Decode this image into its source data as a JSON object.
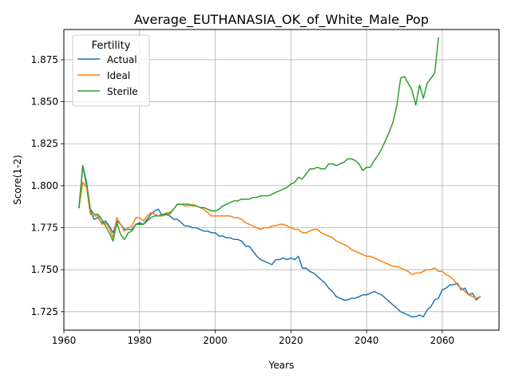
{
  "chart_data": {
    "type": "line",
    "title": "Average_EUTHANASIA_OK_of_White_Male_Pop",
    "xlabel": "Years",
    "ylabel": "Score(1-2)",
    "xlim": [
      1960,
      2075
    ],
    "ylim": [
      1.714,
      1.893
    ],
    "xticks": [
      1960,
      1980,
      2000,
      2020,
      2040,
      2060
    ],
    "xtick_labels": [
      "1960",
      "1980",
      "2000",
      "2020",
      "2040",
      "2060"
    ],
    "yticks": [
      1.725,
      1.75,
      1.775,
      1.8,
      1.825,
      1.85,
      1.875
    ],
    "ytick_labels": [
      "1.725",
      "1.750",
      "1.775",
      "1.800",
      "1.825",
      "1.850",
      "1.875"
    ],
    "grid": true,
    "legend": {
      "title": "Fertility",
      "position": "top-left"
    },
    "series": [
      {
        "name": "Actual",
        "color": "#1f77b4",
        "points": [
          [
            1964,
            1.787
          ],
          [
            1965,
            1.812
          ],
          [
            1966,
            1.8
          ],
          [
            1967,
            1.785
          ],
          [
            1968,
            1.78
          ],
          [
            1969,
            1.781
          ],
          [
            1970,
            1.778
          ],
          [
            1971,
            1.779
          ],
          [
            1972,
            1.776
          ],
          [
            1973,
            1.772
          ],
          [
            1974,
            1.779
          ],
          [
            1975,
            1.777
          ],
          [
            1976,
            1.774
          ],
          [
            1977,
            1.774
          ],
          [
            1978,
            1.774
          ],
          [
            1979,
            1.777
          ],
          [
            1980,
            1.778
          ],
          [
            1981,
            1.777
          ],
          [
            1982,
            1.78
          ],
          [
            1983,
            1.783
          ],
          [
            1984,
            1.785
          ],
          [
            1985,
            1.786
          ],
          [
            1986,
            1.782
          ],
          [
            1987,
            1.783
          ],
          [
            1988,
            1.782
          ],
          [
            1989,
            1.78
          ],
          [
            1990,
            1.78
          ],
          [
            1991,
            1.778
          ],
          [
            1992,
            1.776
          ],
          [
            1993,
            1.776
          ],
          [
            1994,
            1.775
          ],
          [
            1995,
            1.775
          ],
          [
            1996,
            1.774
          ],
          [
            1997,
            1.773
          ],
          [
            1998,
            1.773
          ],
          [
            1999,
            1.772
          ],
          [
            2000,
            1.772
          ],
          [
            2001,
            1.77
          ],
          [
            2002,
            1.77
          ],
          [
            2003,
            1.769
          ],
          [
            2004,
            1.769
          ],
          [
            2005,
            1.768
          ],
          [
            2006,
            1.768
          ],
          [
            2007,
            1.767
          ],
          [
            2008,
            1.764
          ],
          [
            2009,
            1.764
          ],
          [
            2010,
            1.761
          ],
          [
            2011,
            1.758
          ],
          [
            2012,
            1.756
          ],
          [
            2013,
            1.755
          ],
          [
            2014,
            1.754
          ],
          [
            2015,
            1.753
          ],
          [
            2016,
            1.756
          ],
          [
            2017,
            1.756
          ],
          [
            2018,
            1.757
          ],
          [
            2019,
            1.756
          ],
          [
            2020,
            1.757
          ],
          [
            2021,
            1.756
          ],
          [
            2022,
            1.758
          ],
          [
            2023,
            1.751
          ],
          [
            2024,
            1.751
          ],
          [
            2025,
            1.749
          ],
          [
            2026,
            1.748
          ],
          [
            2027,
            1.746
          ],
          [
            2028,
            1.744
          ],
          [
            2029,
            1.742
          ],
          [
            2030,
            1.739
          ],
          [
            2031,
            1.737
          ],
          [
            2032,
            1.734
          ],
          [
            2033,
            1.733
          ],
          [
            2034,
            1.732
          ],
          [
            2035,
            1.732
          ],
          [
            2036,
            1.733
          ],
          [
            2037,
            1.733
          ],
          [
            2038,
            1.734
          ],
          [
            2039,
            1.735
          ],
          [
            2040,
            1.735
          ],
          [
            2041,
            1.736
          ],
          [
            2042,
            1.737
          ],
          [
            2043,
            1.736
          ],
          [
            2044,
            1.735
          ],
          [
            2045,
            1.733
          ],
          [
            2046,
            1.731
          ],
          [
            2047,
            1.729
          ],
          [
            2048,
            1.727
          ],
          [
            2049,
            1.725
          ],
          [
            2050,
            1.724
          ],
          [
            2051,
            1.723
          ],
          [
            2052,
            1.722
          ],
          [
            2053,
            1.722
          ],
          [
            2054,
            1.723
          ],
          [
            2055,
            1.722
          ],
          [
            2056,
            1.726
          ],
          [
            2057,
            1.728
          ],
          [
            2058,
            1.732
          ],
          [
            2059,
            1.733
          ],
          [
            2060,
            1.738
          ],
          [
            2061,
            1.739
          ],
          [
            2062,
            1.741
          ],
          [
            2063,
            1.741
          ],
          [
            2064,
            1.742
          ],
          [
            2065,
            1.738
          ],
          [
            2066,
            1.739
          ],
          [
            2067,
            1.735
          ],
          [
            2068,
            1.736
          ],
          [
            2069,
            1.732
          ],
          [
            2070,
            1.734
          ]
        ]
      },
      {
        "name": "Ideal",
        "color": "#ff7f0e",
        "points": [
          [
            1964,
            1.787
          ],
          [
            1965,
            1.802
          ],
          [
            1966,
            1.799
          ],
          [
            1967,
            1.783
          ],
          [
            1968,
            1.782
          ],
          [
            1969,
            1.782
          ],
          [
            1970,
            1.777
          ],
          [
            1971,
            1.778
          ],
          [
            1972,
            1.775
          ],
          [
            1973,
            1.769
          ],
          [
            1974,
            1.781
          ],
          [
            1975,
            1.777
          ],
          [
            1976,
            1.773
          ],
          [
            1977,
            1.775
          ],
          [
            1978,
            1.776
          ],
          [
            1979,
            1.781
          ],
          [
            1980,
            1.781
          ],
          [
            1981,
            1.779
          ],
          [
            1982,
            1.782
          ],
          [
            1983,
            1.784
          ],
          [
            1984,
            1.783
          ],
          [
            1985,
            1.782
          ],
          [
            1986,
            1.782
          ],
          [
            1987,
            1.784
          ],
          [
            1988,
            1.783
          ],
          [
            1989,
            1.786
          ],
          [
            1990,
            1.789
          ],
          [
            1991,
            1.789
          ],
          [
            1992,
            1.788
          ],
          [
            1993,
            1.788
          ],
          [
            1994,
            1.789
          ],
          [
            1995,
            1.788
          ],
          [
            1996,
            1.787
          ],
          [
            1997,
            1.786
          ],
          [
            1998,
            1.784
          ],
          [
            1999,
            1.782
          ],
          [
            2000,
            1.782
          ],
          [
            2001,
            1.782
          ],
          [
            2002,
            1.782
          ],
          [
            2003,
            1.782
          ],
          [
            2004,
            1.782
          ],
          [
            2005,
            1.781
          ],
          [
            2006,
            1.781
          ],
          [
            2007,
            1.78
          ],
          [
            2008,
            1.778
          ],
          [
            2009,
            1.777
          ],
          [
            2010,
            1.776
          ],
          [
            2011,
            1.775
          ],
          [
            2012,
            1.774
          ],
          [
            2013,
            1.775
          ],
          [
            2014,
            1.775
          ],
          [
            2015,
            1.776
          ],
          [
            2016,
            1.776
          ],
          [
            2017,
            1.777
          ],
          [
            2018,
            1.777
          ],
          [
            2019,
            1.776
          ],
          [
            2020,
            1.775
          ],
          [
            2021,
            1.774
          ],
          [
            2022,
            1.774
          ],
          [
            2023,
            1.772
          ],
          [
            2024,
            1.772
          ],
          [
            2025,
            1.773
          ],
          [
            2026,
            1.774
          ],
          [
            2027,
            1.774
          ],
          [
            2028,
            1.772
          ],
          [
            2029,
            1.771
          ],
          [
            2030,
            1.77
          ],
          [
            2031,
            1.769
          ],
          [
            2032,
            1.767
          ],
          [
            2033,
            1.766
          ],
          [
            2034,
            1.765
          ],
          [
            2035,
            1.764
          ],
          [
            2036,
            1.762
          ],
          [
            2037,
            1.761
          ],
          [
            2038,
            1.76
          ],
          [
            2039,
            1.759
          ],
          [
            2040,
            1.758
          ],
          [
            2041,
            1.758
          ],
          [
            2042,
            1.757
          ],
          [
            2043,
            1.756
          ],
          [
            2044,
            1.755
          ],
          [
            2045,
            1.754
          ],
          [
            2046,
            1.753
          ],
          [
            2047,
            1.752
          ],
          [
            2048,
            1.752
          ],
          [
            2049,
            1.751
          ],
          [
            2050,
            1.75
          ],
          [
            2051,
            1.749
          ],
          [
            2052,
            1.747
          ],
          [
            2053,
            1.748
          ],
          [
            2054,
            1.748
          ],
          [
            2055,
            1.749
          ],
          [
            2056,
            1.75
          ],
          [
            2057,
            1.75
          ],
          [
            2058,
            1.751
          ],
          [
            2059,
            1.749
          ],
          [
            2060,
            1.749
          ],
          [
            2061,
            1.747
          ],
          [
            2062,
            1.746
          ],
          [
            2063,
            1.744
          ],
          [
            2064,
            1.741
          ],
          [
            2065,
            1.739
          ],
          [
            2066,
            1.737
          ],
          [
            2067,
            1.735
          ],
          [
            2068,
            1.734
          ],
          [
            2069,
            1.733
          ],
          [
            2070,
            1.734
          ]
        ]
      },
      {
        "name": "Sterile",
        "color": "#2ca02c",
        "points": [
          [
            1964,
            1.787
          ],
          [
            1965,
            1.812
          ],
          [
            1966,
            1.802
          ],
          [
            1967,
            1.786
          ],
          [
            1968,
            1.783
          ],
          [
            1969,
            1.783
          ],
          [
            1970,
            1.78
          ],
          [
            1971,
            1.776
          ],
          [
            1972,
            1.772
          ],
          [
            1973,
            1.767
          ],
          [
            1974,
            1.778
          ],
          [
            1975,
            1.771
          ],
          [
            1976,
            1.768
          ],
          [
            1977,
            1.772
          ],
          [
            1978,
            1.773
          ],
          [
            1979,
            1.777
          ],
          [
            1980,
            1.777
          ],
          [
            1981,
            1.777
          ],
          [
            1982,
            1.779
          ],
          [
            1983,
            1.781
          ],
          [
            1984,
            1.782
          ],
          [
            1985,
            1.782
          ],
          [
            1986,
            1.783
          ],
          [
            1987,
            1.783
          ],
          [
            1988,
            1.784
          ],
          [
            1989,
            1.786
          ],
          [
            1990,
            1.789
          ],
          [
            1991,
            1.789
          ],
          [
            1992,
            1.789
          ],
          [
            1993,
            1.789
          ],
          [
            1994,
            1.788
          ],
          [
            1995,
            1.788
          ],
          [
            1996,
            1.787
          ],
          [
            1997,
            1.787
          ],
          [
            1998,
            1.786
          ],
          [
            1999,
            1.785
          ],
          [
            2000,
            1.785
          ],
          [
            2001,
            1.786
          ],
          [
            2002,
            1.788
          ],
          [
            2003,
            1.789
          ],
          [
            2004,
            1.79
          ],
          [
            2005,
            1.791
          ],
          [
            2006,
            1.791
          ],
          [
            2007,
            1.792
          ],
          [
            2008,
            1.792
          ],
          [
            2009,
            1.792
          ],
          [
            2010,
            1.793
          ],
          [
            2011,
            1.793
          ],
          [
            2012,
            1.794
          ],
          [
            2013,
            1.794
          ],
          [
            2014,
            1.794
          ],
          [
            2015,
            1.795
          ],
          [
            2016,
            1.796
          ],
          [
            2017,
            1.797
          ],
          [
            2018,
            1.798
          ],
          [
            2019,
            1.799
          ],
          [
            2020,
            1.801
          ],
          [
            2021,
            1.802
          ],
          [
            2022,
            1.805
          ],
          [
            2023,
            1.804
          ],
          [
            2024,
            1.807
          ],
          [
            2025,
            1.81
          ],
          [
            2026,
            1.81
          ],
          [
            2027,
            1.811
          ],
          [
            2028,
            1.81
          ],
          [
            2029,
            1.81
          ],
          [
            2030,
            1.813
          ],
          [
            2031,
            1.813
          ],
          [
            2032,
            1.812
          ],
          [
            2033,
            1.813
          ],
          [
            2034,
            1.814
          ],
          [
            2035,
            1.816
          ],
          [
            2036,
            1.816
          ],
          [
            2037,
            1.815
          ],
          [
            2038,
            1.813
          ],
          [
            2039,
            1.809
          ],
          [
            2040,
            1.811
          ],
          [
            2041,
            1.811
          ],
          [
            2042,
            1.815
          ],
          [
            2043,
            1.818
          ],
          [
            2044,
            1.822
          ],
          [
            2045,
            1.827
          ],
          [
            2046,
            1.832
          ],
          [
            2047,
            1.838
          ],
          [
            2048,
            1.848
          ],
          [
            2049,
            1.864
          ],
          [
            2050,
            1.865
          ],
          [
            2051,
            1.861
          ],
          [
            2052,
            1.857
          ],
          [
            2053,
            1.848
          ],
          [
            2054,
            1.86
          ],
          [
            2055,
            1.852
          ],
          [
            2056,
            1.861
          ],
          [
            2057,
            1.864
          ],
          [
            2058,
            1.867
          ],
          [
            2059,
            1.888
          ]
        ]
      }
    ]
  }
}
